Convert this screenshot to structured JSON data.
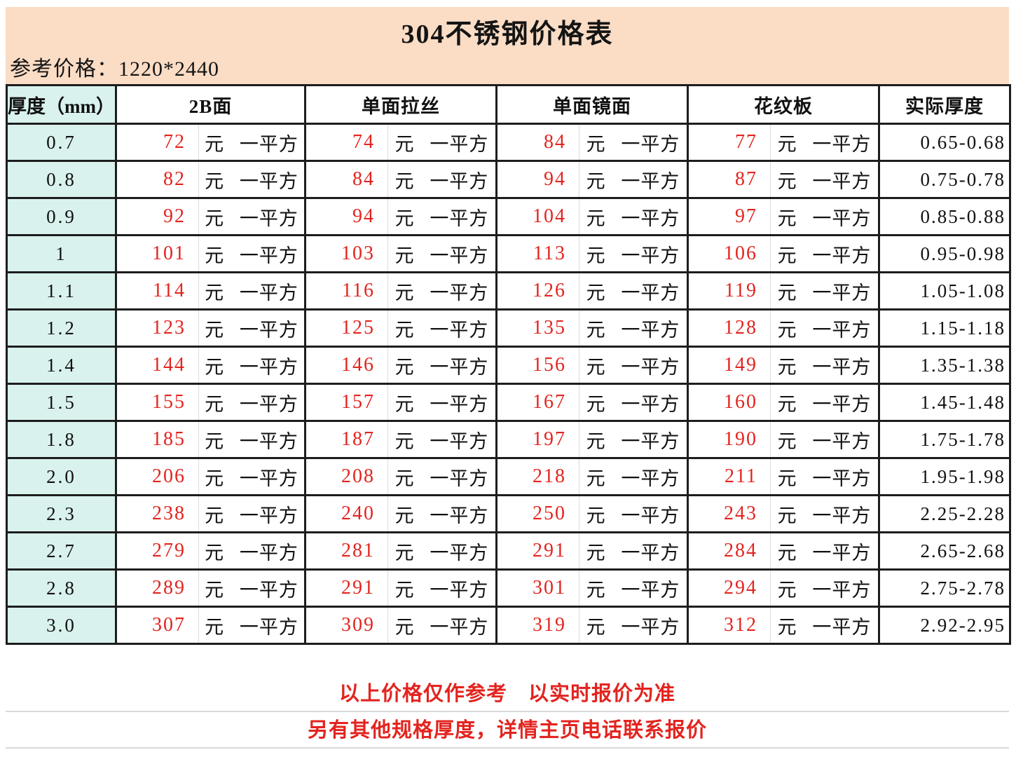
{
  "title": "304不锈钢价格表",
  "subtitle": "参考价格：1220*2440",
  "columns": [
    "厚度（mm）",
    "2B面",
    "单面拉丝",
    "单面镜面",
    "花纹板",
    "实际厚度"
  ],
  "unit_label": "元 一平方",
  "rows": [
    {
      "thickness": "0.7",
      "prices": [
        "72",
        "74",
        "84",
        "77"
      ],
      "actual": "0.65-0.68"
    },
    {
      "thickness": "0.8",
      "prices": [
        "82",
        "84",
        "94",
        "87"
      ],
      "actual": "0.75-0.78"
    },
    {
      "thickness": "0.9",
      "prices": [
        "92",
        "94",
        "104",
        "97"
      ],
      "actual": "0.85-0.88"
    },
    {
      "thickness": "1",
      "prices": [
        "101",
        "103",
        "113",
        "106"
      ],
      "actual": "0.95-0.98"
    },
    {
      "thickness": "1.1",
      "prices": [
        "114",
        "116",
        "126",
        "119"
      ],
      "actual": "1.05-1.08"
    },
    {
      "thickness": "1.2",
      "prices": [
        "123",
        "125",
        "135",
        "128"
      ],
      "actual": "1.15-1.18"
    },
    {
      "thickness": "1.4",
      "prices": [
        "144",
        "146",
        "156",
        "149"
      ],
      "actual": "1.35-1.38"
    },
    {
      "thickness": "1.5",
      "prices": [
        "155",
        "157",
        "167",
        "160"
      ],
      "actual": "1.45-1.48"
    },
    {
      "thickness": "1.8",
      "prices": [
        "185",
        "187",
        "197",
        "190"
      ],
      "actual": "1.75-1.78"
    },
    {
      "thickness": "2.0",
      "prices": [
        "206",
        "208",
        "218",
        "211"
      ],
      "actual": "1.95-1.98"
    },
    {
      "thickness": "2.3",
      "prices": [
        "238",
        "240",
        "250",
        "243"
      ],
      "actual": "2.25-2.28"
    },
    {
      "thickness": "2.7",
      "prices": [
        "279",
        "281",
        "291",
        "284"
      ],
      "actual": "2.65-2.68"
    },
    {
      "thickness": "2.8",
      "prices": [
        "289",
        "291",
        "301",
        "294"
      ],
      "actual": "2.75-2.78"
    },
    {
      "thickness": "3.0",
      "prices": [
        "307",
        "309",
        "319",
        "312"
      ],
      "actual": "2.92-2.95"
    }
  ],
  "footnotes": [
    "以上价格仅作参考　以实时报价为准",
    "另有其他规格厚度，详情主页电话联系报价"
  ],
  "colors": {
    "header_band": "#fbdcc5",
    "thickness_col": "#d9f2ee",
    "price_text": "#e3241f",
    "border": "#1d1d1d",
    "sub_divider": "#dcdcdc",
    "footnote_divider": "#d8d8d8"
  }
}
